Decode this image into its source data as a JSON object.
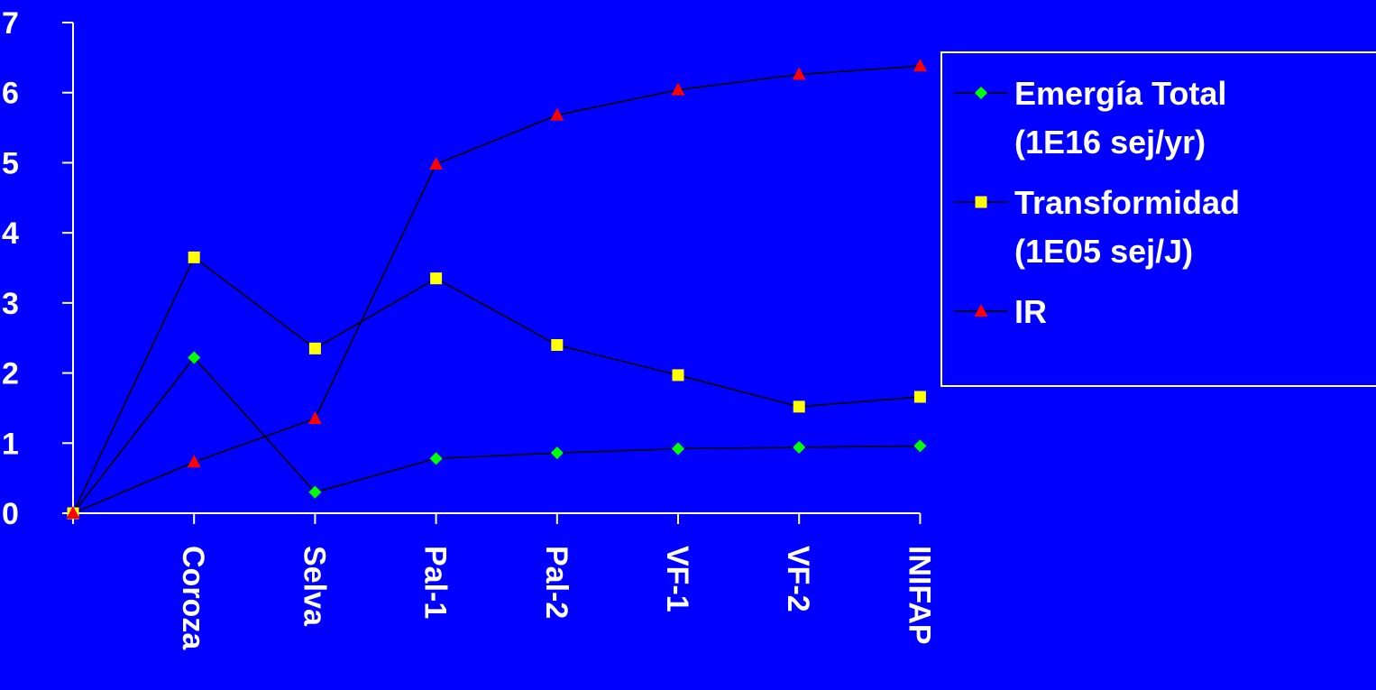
{
  "chart_data": {
    "type": "line",
    "categories": [
      "",
      "Coroza",
      "Selva",
      "Pal-1",
      "Pal-2",
      "VF-1",
      "VF-2",
      "INIFAP"
    ],
    "ylim": [
      0,
      7
    ],
    "y_ticks": [
      0,
      1,
      2,
      3,
      4,
      5,
      6,
      7
    ],
    "grid": false,
    "legend_position": "right",
    "series": [
      {
        "name": [
          "Emergía Total",
          "(1E16 sej/yr)"
        ],
        "marker": "diamond",
        "color": "#00FF00",
        "values": [
          0,
          2.22,
          0.3,
          0.78,
          0.86,
          0.92,
          0.94,
          0.96
        ]
      },
      {
        "name": [
          "Transformidad",
          "(1E05 sej/J)"
        ],
        "marker": "square",
        "color": "#FFFF00",
        "values": [
          0,
          3.65,
          2.35,
          3.35,
          2.4,
          1.97,
          1.52,
          1.66
        ]
      },
      {
        "name": [
          "IR"
        ],
        "marker": "triangle",
        "color": "#FF0000",
        "values": [
          0,
          0.73,
          1.35,
          4.98,
          5.68,
          6.04,
          6.26,
          6.38
        ]
      }
    ],
    "line_color": "#000000",
    "axis_color": "#FFFFFF"
  }
}
